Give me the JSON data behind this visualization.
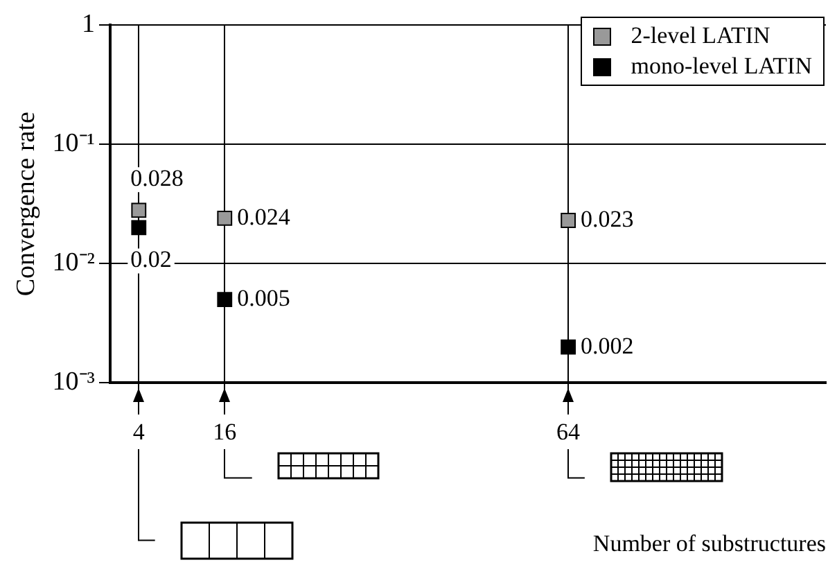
{
  "chart_data": {
    "type": "scatter",
    "ylabel": "Convergence rate",
    "xlabel": "Number of substructures",
    "x": [
      4,
      16,
      64
    ],
    "series": [
      {
        "name": "2-level LATIN",
        "color": "#999999",
        "values": [
          0.028,
          0.024,
          0.023
        ]
      },
      {
        "name": "mono-level LATIN",
        "color": "#000000",
        "values": [
          0.02,
          0.005,
          0.002
        ]
      }
    ],
    "xlim": [
      0,
      100
    ],
    "xticks": [
      4,
      16,
      64
    ],
    "ylim": [
      0.001,
      1
    ],
    "yticks": [
      {
        "value": 1,
        "label": "1"
      },
      {
        "value": 0.1,
        "label": "10⁻¹"
      },
      {
        "value": 0.01,
        "label": "10⁻²"
      },
      {
        "value": 0.001,
        "label": "10⁻³"
      }
    ],
    "log": "y",
    "grid": true,
    "legend": "top right",
    "marker": "square",
    "data_labels": true
  }
}
